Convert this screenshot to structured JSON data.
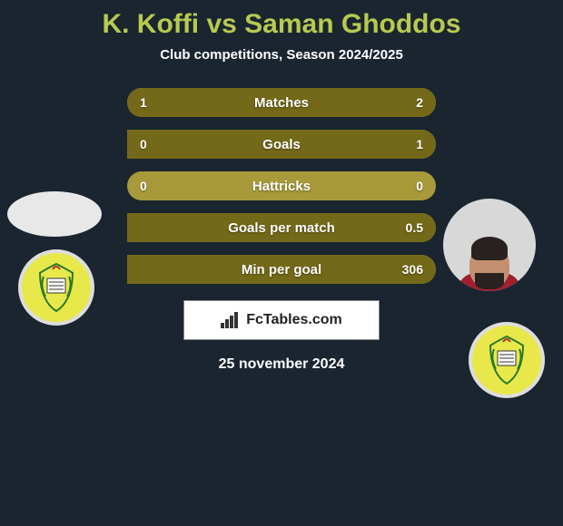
{
  "title": "K. Koffi vs Saman Ghoddos",
  "subtitle": "Club competitions, Season 2024/2025",
  "date": "25 november 2024",
  "brand": "FcTables.com",
  "colors": {
    "bg": "#1a2530",
    "title": "#b8c94f",
    "bar_bg": "#a89a3a",
    "bar_fill": "#746918",
    "text": "#ffffff",
    "club_yellow": "#e8e84a"
  },
  "bars": [
    {
      "label": "Matches",
      "left": "1",
      "right": "2",
      "lw": 33,
      "rw": 67
    },
    {
      "label": "Goals",
      "left": "0",
      "right": "1",
      "lw": 0,
      "rw": 100
    },
    {
      "label": "Hattricks",
      "left": "0",
      "right": "0",
      "lw": 0,
      "rw": 0
    },
    {
      "label": "Goals per match",
      "left": "",
      "right": "0.5",
      "lw": 0,
      "rw": 100
    },
    {
      "label": "Min per goal",
      "left": "",
      "right": "306",
      "lw": 0,
      "rw": 100
    }
  ]
}
